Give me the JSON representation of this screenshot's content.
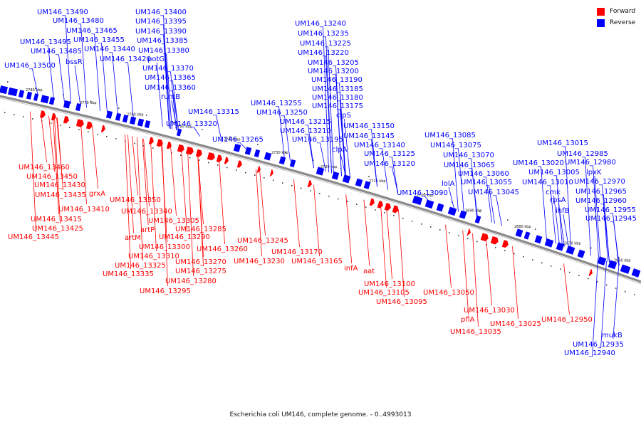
{
  "caption": "Escherichia coli UM146, complete genome. - 0..4993013",
  "legend": [
    {
      "label": "Forward",
      "color": "#ff0000"
    },
    {
      "label": "Reverse",
      "color": "#0000ff"
    }
  ],
  "colors": {
    "forward": "#ff0000",
    "reverse": "#0000ff",
    "backbone": "#888888"
  },
  "ticks": [
    "2780 kbp",
    "2770 kbp",
    "2760 kbp",
    "2750 kbp",
    "2740 kbp",
    "2730 kbp",
    "2720 kbp",
    "2710 kbp",
    "2700 kbp",
    "2690 kbp",
    "2680 kbp",
    "2670 kbp",
    "2660 kbp"
  ],
  "reverse_labels": [
    "UM146_13490",
    "UM146_13480",
    "UM146_13465",
    "UM146_13455",
    "UM146_13495",
    "UM146_13485",
    "UM146_13440",
    "UM146_13500",
    "bssR",
    "UM146_13420",
    "UM146_13400",
    "UM146_13395",
    "UM146_13390",
    "UM146_13385",
    "UM146_13380",
    "potG",
    "UM146_13370",
    "UM146_13365",
    "UM146_13360",
    "rumB",
    "UM146_13315",
    "UM146_13320",
    "UM146_13265",
    "UM146_13240",
    "UM146_13235",
    "UM146_13225",
    "UM146_13220",
    "UM146_13205",
    "UM146_13200",
    "UM146_13190",
    "UM146_13185",
    "UM146_13180",
    "UM146_13175",
    "UM146_13255",
    "UM146_13250",
    "clpS",
    "UM146_13215",
    "UM146_13210",
    "UM146_13195",
    "clpA",
    "UM146_13150",
    "UM146_13145",
    "UM146_13140",
    "UM146_13125",
    "UM146_13120",
    "UM146_13085",
    "UM146_13075",
    "UM146_13070",
    "UM146_13065",
    "lolA",
    "UM146_13060",
    "UM146_13055",
    "UM146_13045",
    "UM146_13090",
    "UM146_13015",
    "UM146_12985",
    "UM146_13020",
    "UM146_12980",
    "UM146_13005",
    "lpxK",
    "UM146_13010",
    "UM146_12970",
    "cmk",
    "UM146_12965",
    "rpsA",
    "UM146_12960",
    "ihfB",
    "UM146_12955",
    "UM146_12945",
    "mukB",
    "UM146_12935",
    "UM146_12940"
  ],
  "forward_labels": [
    "UM146_13460",
    "UM146_13450",
    "UM146_13430",
    "UM146_13435",
    "grxA",
    "UM146_13410",
    "UM146_13415",
    "UM146_13425",
    "UM146_13445",
    "UM146_13350",
    "UM146_13340",
    "artP",
    "UM146_13305",
    "artM",
    "UM146_13290",
    "UM146_13285",
    "UM146_13300",
    "UM146_13310",
    "UM146_13260",
    "UM146_13325",
    "UM146_13270",
    "UM146_13335",
    "UM146_13275",
    "UM146_13280",
    "UM146_13295",
    "UM146_13245",
    "UM146_13230",
    "UM146_13170",
    "UM146_13165",
    "infA",
    "aat",
    "UM146_13100",
    "UM146_13105",
    "UM146_13095",
    "UM146_13050",
    "UM146_13030",
    "pflA",
    "UM146_13025",
    "UM146_13035",
    "UM146_12950"
  ]
}
